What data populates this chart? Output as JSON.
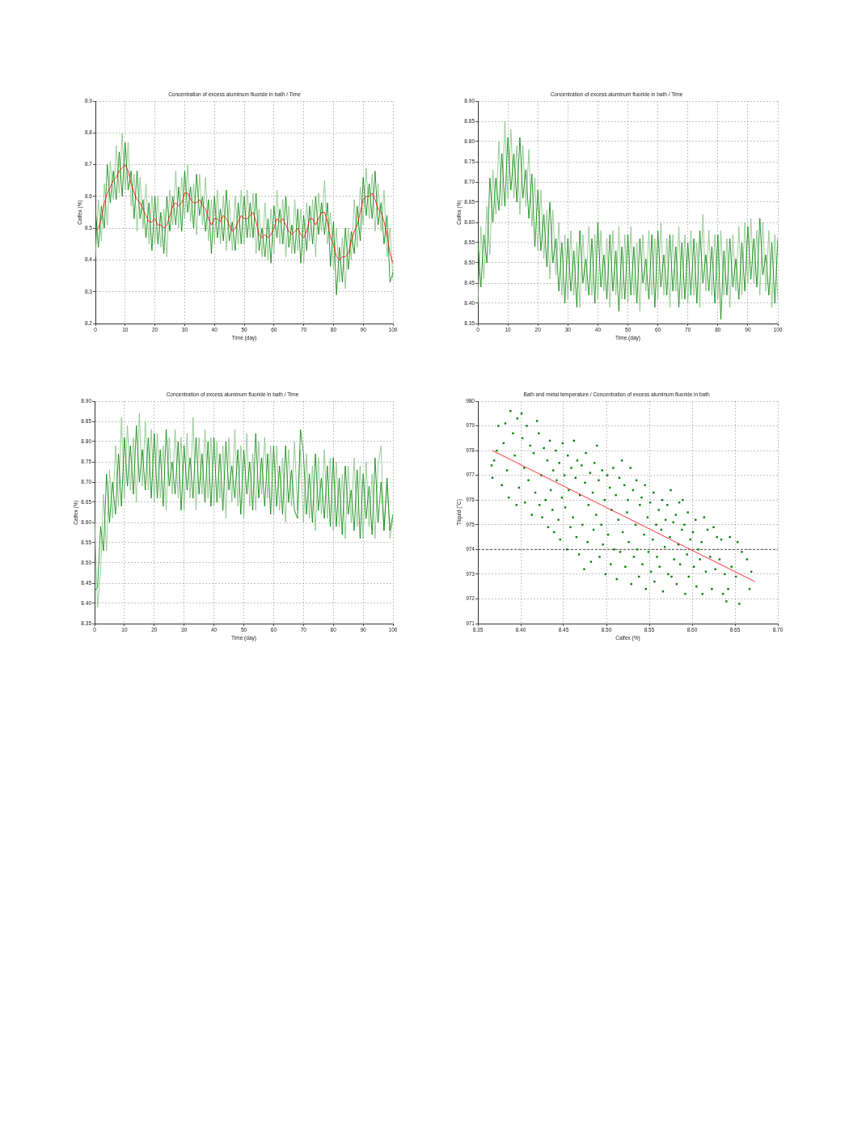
{
  "chart_data": [
    {
      "type": "line",
      "title": "Concentration of excess aluminum fluoride in bath / Time",
      "xlabel": "Time (day)",
      "ylabel": "Calfex (%)",
      "x": [
        0,
        1,
        2,
        3,
        4,
        5,
        6,
        7,
        8,
        9,
        10,
        11,
        12,
        13,
        14,
        15,
        16,
        17,
        18,
        19,
        20,
        21,
        22,
        23,
        24,
        25,
        26,
        27,
        28,
        29,
        30,
        31,
        32,
        33,
        34,
        35,
        36,
        37,
        38,
        39,
        40,
        41,
        42,
        43,
        44,
        45,
        46,
        47,
        48,
        49,
        50,
        51,
        52,
        53,
        54,
        55,
        56,
        57,
        58,
        59,
        60,
        61,
        62,
        63,
        64,
        65,
        66,
        67,
        68,
        69,
        70,
        71,
        72,
        73,
        74,
        75,
        76,
        77,
        78,
        79,
        80,
        81,
        82,
        83,
        84,
        85,
        86,
        87,
        88,
        89,
        90,
        91,
        92,
        93,
        94,
        95,
        96,
        97,
        98,
        99,
        100
      ],
      "xlim": [
        0,
        100
      ],
      "xticks": [
        0,
        10,
        20,
        30,
        40,
        50,
        60,
        70,
        80,
        90,
        100
      ],
      "ylim": [
        8.2,
        8.9
      ],
      "yticks": [
        8.2,
        8.3,
        8.4,
        8.5,
        8.6,
        8.7,
        8.8,
        8.9
      ],
      "grid": true,
      "series": [
        {
          "color": "#80c080",
          "values": [
            8.41,
            8.59,
            8.46,
            8.64,
            8.51,
            8.71,
            8.59,
            8.76,
            8.61,
            8.8,
            8.62,
            8.77,
            8.57,
            8.67,
            8.49,
            8.66,
            8.5,
            8.64,
            8.45,
            8.6,
            8.45,
            8.6,
            8.44,
            8.56,
            8.41,
            8.62,
            8.51,
            8.68,
            8.5,
            8.66,
            8.53,
            8.7,
            8.52,
            8.64,
            8.48,
            8.67,
            8.51,
            8.66,
            8.46,
            8.59,
            8.45,
            8.62,
            8.45,
            8.6,
            8.43,
            8.59,
            8.43,
            8.6,
            8.45,
            8.62,
            8.45,
            8.62,
            8.47,
            8.61,
            8.42,
            8.56,
            8.41,
            8.58,
            8.4,
            8.56,
            8.42,
            8.62,
            8.45,
            8.59,
            8.41,
            8.57,
            8.42,
            8.59,
            8.43,
            8.56,
            8.39,
            8.58,
            8.46,
            8.59,
            8.41,
            8.61,
            8.49,
            8.65,
            8.45,
            8.55,
            8.37,
            8.5,
            8.33,
            8.47,
            8.31,
            8.5,
            8.4,
            8.59,
            8.44,
            8.63,
            8.51,
            8.69,
            8.53,
            8.67,
            8.49,
            8.64,
            8.49,
            8.62,
            8.41,
            8.5,
            8.34
          ]
        },
        {
          "color": "#008000",
          "values": [
            8.56,
            8.44,
            8.57,
            8.5,
            8.7,
            8.58,
            8.68,
            8.59,
            8.74,
            8.6,
            8.77,
            8.62,
            8.68,
            8.53,
            8.68,
            8.53,
            8.59,
            8.47,
            8.58,
            8.43,
            8.6,
            8.45,
            8.55,
            8.42,
            8.6,
            8.49,
            8.6,
            8.51,
            8.63,
            8.49,
            8.68,
            8.55,
            8.63,
            8.5,
            8.67,
            8.54,
            8.6,
            8.49,
            8.59,
            8.42,
            8.6,
            8.47,
            8.56,
            8.46,
            8.62,
            8.46,
            8.52,
            8.43,
            8.58,
            8.45,
            8.6,
            8.47,
            8.58,
            8.47,
            8.61,
            8.43,
            8.5,
            8.41,
            8.53,
            8.39,
            8.57,
            8.47,
            8.56,
            8.45,
            8.6,
            8.44,
            8.51,
            8.42,
            8.56,
            8.39,
            8.54,
            8.43,
            8.57,
            8.45,
            8.6,
            8.48,
            8.58,
            8.48,
            8.58,
            8.38,
            8.52,
            8.29,
            8.44,
            8.33,
            8.5,
            8.37,
            8.49,
            8.42,
            8.57,
            8.46,
            8.66,
            8.54,
            8.64,
            8.53,
            8.68,
            8.51,
            8.58,
            8.45,
            8.54,
            8.33,
            8.36
          ]
        },
        {
          "color": "#ff0000",
          "values": [
            8.49,
            8.5,
            8.53,
            8.58,
            8.61,
            8.63,
            8.65,
            8.66,
            8.68,
            8.69,
            8.7,
            8.68,
            8.64,
            8.61,
            8.59,
            8.58,
            8.56,
            8.54,
            8.52,
            8.52,
            8.53,
            8.51,
            8.51,
            8.5,
            8.51,
            8.54,
            8.57,
            8.58,
            8.57,
            8.58,
            8.61,
            8.61,
            8.59,
            8.58,
            8.58,
            8.59,
            8.57,
            8.56,
            8.53,
            8.51,
            8.53,
            8.53,
            8.52,
            8.54,
            8.53,
            8.51,
            8.49,
            8.5,
            8.52,
            8.54,
            8.53,
            8.53,
            8.54,
            8.55,
            8.52,
            8.48,
            8.47,
            8.48,
            8.47,
            8.48,
            8.5,
            8.53,
            8.52,
            8.53,
            8.51,
            8.49,
            8.48,
            8.49,
            8.5,
            8.48,
            8.47,
            8.49,
            8.53,
            8.53,
            8.51,
            8.53,
            8.55,
            8.55,
            8.52,
            8.47,
            8.45,
            8.41,
            8.4,
            8.41,
            8.41,
            8.42,
            8.46,
            8.49,
            8.51,
            8.55,
            8.59,
            8.6,
            8.6,
            8.61,
            8.59,
            8.56,
            8.55,
            8.52,
            8.48,
            8.42,
            8.39
          ]
        }
      ]
    },
    {
      "type": "line",
      "title": "Concentration of excess aluminum fluoride in bath / Time",
      "xlabel": "Time (day)",
      "ylabel": "Calfex (%)",
      "x": [
        0,
        1,
        2,
        3,
        4,
        5,
        6,
        7,
        8,
        9,
        10,
        11,
        12,
        13,
        14,
        15,
        16,
        17,
        18,
        19,
        20,
        21,
        22,
        23,
        24,
        25,
        26,
        27,
        28,
        29,
        30,
        31,
        32,
        33,
        34,
        35,
        36,
        37,
        38,
        39,
        40,
        41,
        42,
        43,
        44,
        45,
        46,
        47,
        48,
        49,
        50,
        51,
        52,
        53,
        54,
        55,
        56,
        57,
        58,
        59,
        60,
        61,
        62,
        63,
        64,
        65,
        66,
        67,
        68,
        69,
        70,
        71,
        72,
        73,
        74,
        75,
        76,
        77,
        78,
        79,
        80,
        81,
        82,
        83,
        84,
        85,
        86,
        87,
        88,
        89,
        90,
        91,
        92,
        93,
        94,
        95,
        96,
        97,
        98,
        99,
        100
      ],
      "xlim": [
        0,
        100
      ],
      "xticks": [
        0,
        10,
        20,
        30,
        40,
        50,
        60,
        70,
        80,
        90,
        100
      ],
      "ylim": [
        8.35,
        8.9
      ],
      "yticks": [
        8.35,
        {
          "value": 8.4,
          "label": "8.40"
        },
        8.45,
        {
          "value": 8.5,
          "label": "8.50"
        },
        8.55,
        {
          "value": 8.6,
          "label": "8.60"
        },
        8.65,
        {
          "value": 8.7,
          "label": "8.70"
        },
        8.75,
        {
          "value": 8.8,
          "label": "8.80"
        },
        8.85,
        {
          "value": 8.9,
          "label": "8.90"
        }
      ],
      "grid": true,
      "series": [
        {
          "color": "#80c080",
          "values": [
            8.4,
            8.59,
            8.46,
            8.64,
            8.52,
            8.73,
            8.62,
            8.8,
            8.64,
            8.85,
            8.66,
            8.83,
            8.66,
            8.79,
            8.62,
            8.79,
            8.64,
            8.78,
            8.59,
            8.71,
            8.53,
            8.68,
            8.51,
            8.63,
            8.46,
            8.63,
            8.47,
            8.6,
            8.42,
            8.57,
            8.41,
            8.58,
            8.42,
            8.55,
            8.39,
            8.57,
            8.43,
            8.59,
            8.42,
            8.57,
            8.41,
            8.58,
            8.43,
            8.56,
            8.39,
            8.58,
            8.42,
            8.59,
            8.41,
            8.57,
            8.4,
            8.59,
            8.42,
            8.55,
            8.38,
            8.57,
            8.43,
            8.58,
            8.42,
            8.56,
            8.41,
            8.6,
            8.42,
            8.56,
            8.39,
            8.57,
            8.43,
            8.59,
            8.41,
            8.57,
            8.4,
            8.58,
            8.42,
            8.55,
            8.39,
            8.62,
            8.43,
            8.58,
            8.42,
            8.57,
            8.41,
            8.58,
            8.42,
            8.56,
            8.39,
            8.57,
            8.43,
            8.59,
            8.42,
            8.6,
            8.45,
            8.61,
            8.45,
            8.58,
            8.42,
            8.6,
            8.43,
            8.58,
            8.39,
            8.57,
            8.41
          ]
        },
        {
          "color": "#008000",
          "values": [
            8.55,
            8.44,
            8.57,
            8.5,
            8.71,
            8.6,
            8.71,
            8.63,
            8.77,
            8.64,
            8.81,
            8.68,
            8.77,
            8.65,
            8.81,
            8.66,
            8.73,
            8.61,
            8.72,
            8.54,
            8.68,
            8.53,
            8.62,
            8.49,
            8.65,
            8.5,
            8.56,
            8.43,
            8.55,
            8.4,
            8.56,
            8.43,
            8.53,
            8.39,
            8.58,
            8.45,
            8.51,
            8.42,
            8.56,
            8.4,
            8.6,
            8.44,
            8.52,
            8.41,
            8.57,
            8.43,
            8.53,
            8.38,
            8.54,
            8.41,
            8.57,
            8.42,
            8.54,
            8.4,
            8.56,
            8.45,
            8.51,
            8.41,
            8.57,
            8.39,
            8.58,
            8.44,
            8.52,
            8.42,
            8.57,
            8.43,
            8.54,
            8.39,
            8.55,
            8.41,
            8.55,
            8.42,
            8.56,
            8.4,
            8.58,
            8.45,
            8.52,
            8.43,
            8.54,
            8.4,
            8.57,
            8.36,
            8.53,
            8.42,
            8.56,
            8.44,
            8.51,
            8.41,
            8.55,
            8.43,
            8.59,
            8.46,
            8.56,
            8.44,
            8.61,
            8.47,
            8.52,
            8.42,
            8.55,
            8.4,
            8.56
          ]
        }
      ]
    },
    {
      "type": "line",
      "title": "Concentration of excess aluminum fluoride in bath / Time",
      "xlabel": "Time (day)",
      "ylabel": "Calfex (%)",
      "x": [
        0,
        1,
        2,
        3,
        4,
        5,
        6,
        7,
        8,
        9,
        10,
        11,
        12,
        13,
        14,
        15,
        16,
        17,
        18,
        19,
        20,
        21,
        22,
        23,
        24,
        25,
        26,
        27,
        28,
        29,
        30,
        31,
        32,
        33,
        34,
        35,
        36,
        37,
        38,
        39,
        40,
        41,
        42,
        43,
        44,
        45,
        46,
        47,
        48,
        49,
        50,
        51,
        52,
        53,
        54,
        55,
        56,
        57,
        58,
        59,
        60,
        61,
        62,
        63,
        64,
        65,
        66,
        67,
        68,
        69,
        70,
        71,
        72,
        73,
        74,
        75,
        76,
        77,
        78,
        79,
        80,
        81,
        82,
        83,
        84,
        85,
        86,
        87,
        88,
        89,
        90,
        91,
        92,
        93,
        94,
        95,
        96,
        97,
        98,
        99,
        100
      ],
      "xlim": [
        0,
        100
      ],
      "xticks": [
        0,
        10,
        20,
        30,
        40,
        50,
        60,
        70,
        80,
        90,
        100
      ],
      "ylim": [
        8.35,
        8.9
      ],
      "yticks": [
        8.35,
        {
          "value": 8.4,
          "label": "8.40"
        },
        8.45,
        {
          "value": 8.5,
          "label": "8.50"
        },
        8.55,
        {
          "value": 8.6,
          "label": "8.60"
        },
        8.65,
        {
          "value": 8.7,
          "label": "8.70"
        },
        8.75,
        {
          "value": 8.8,
          "label": "8.80"
        },
        8.85,
        {
          "value": 8.9,
          "label": "8.90"
        }
      ],
      "grid": true,
      "series": [
        {
          "color": "#80c080",
          "values": [
            8.6,
            8.39,
            8.48,
            8.67,
            8.53,
            8.73,
            8.61,
            8.79,
            8.64,
            8.86,
            8.66,
            8.84,
            8.68,
            8.81,
            8.65,
            8.87,
            8.69,
            8.85,
            8.68,
            8.83,
            8.65,
            8.82,
            8.66,
            8.79,
            8.63,
            8.81,
            8.67,
            8.83,
            8.66,
            8.81,
            8.63,
            8.82,
            8.66,
            8.86,
            8.63,
            8.81,
            8.67,
            8.83,
            8.66,
            8.81,
            8.64,
            8.8,
            8.66,
            8.79,
            8.61,
            8.81,
            8.65,
            8.83,
            8.64,
            8.79,
            8.61,
            8.82,
            8.64,
            8.77,
            8.63,
            8.8,
            8.67,
            8.81,
            8.66,
            8.79,
            8.62,
            8.79,
            8.63,
            8.76,
            8.6,
            8.78,
            8.64,
            8.8,
            8.63,
            8.78,
            8.6,
            8.77,
            8.61,
            8.74,
            8.58,
            8.76,
            8.62,
            8.78,
            8.61,
            8.76,
            8.58,
            8.75,
            8.59,
            8.72,
            8.56,
            8.74,
            8.6,
            8.76,
            8.59,
            8.74,
            8.56,
            8.75,
            8.59,
            8.72,
            8.56,
            8.74,
            8.79,
            8.58,
            8.7,
            8.56,
            8.61
          ]
        },
        {
          "color": "#008000",
          "values": [
            8.43,
            8.44,
            8.59,
            8.53,
            8.72,
            8.6,
            8.7,
            8.62,
            8.77,
            8.64,
            8.81,
            8.69,
            8.79,
            8.67,
            8.84,
            8.7,
            8.78,
            8.68,
            8.81,
            8.66,
            8.82,
            8.66,
            8.78,
            8.64,
            8.83,
            8.69,
            8.75,
            8.67,
            8.8,
            8.63,
            8.79,
            8.68,
            8.76,
            8.66,
            8.81,
            8.67,
            8.77,
            8.65,
            8.8,
            8.64,
            8.81,
            8.65,
            8.77,
            8.63,
            8.8,
            8.68,
            8.74,
            8.66,
            8.78,
            8.62,
            8.78,
            8.67,
            8.75,
            8.63,
            8.82,
            8.66,
            8.76,
            8.64,
            8.77,
            8.62,
            8.79,
            8.64,
            8.74,
            8.62,
            8.79,
            8.65,
            8.73,
            8.63,
            8.61,
            8.83,
            8.77,
            8.62,
            8.72,
            8.6,
            8.77,
            8.63,
            8.71,
            8.61,
            8.74,
            8.59,
            8.76,
            8.59,
            8.71,
            8.57,
            8.74,
            8.62,
            8.68,
            8.58,
            8.73,
            8.56,
            8.72,
            8.61,
            8.69,
            8.57,
            8.76,
            8.6,
            8.7,
            8.58,
            8.71,
            8.58,
            8.62
          ]
        }
      ]
    },
    {
      "type": "scatter",
      "title": "Bath and metal temperature / Concentration of excess aluminum fluoride in bath",
      "xlabel": "Calfex (%)",
      "ylabel": "Tliquid (°C)",
      "xlim": [
        8.35,
        8.7
      ],
      "xticks": [
        8.35,
        {
          "value": 8.4,
          "label": "8.40"
        },
        8.45,
        {
          "value": 8.5,
          "label": "8.50"
        },
        8.55,
        {
          "value": 8.6,
          "label": "8.60"
        },
        8.65,
        {
          "value": 8.7,
          "label": "8.70"
        }
      ],
      "ylim": [
        971,
        980
      ],
      "yticks": [
        971,
        972,
        973,
        974,
        975,
        976,
        977,
        978,
        979,
        980
      ],
      "grid": true,
      "marker": "square",
      "ref_lines": [
        {
          "axis": "y",
          "value": 974,
          "color": "#404040",
          "line_style": "dashed"
        }
      ],
      "series": [
        {
          "color": "#008000",
          "x": [
            8.366,
            8.367,
            8.369,
            8.372,
            8.374,
            8.378,
            8.38,
            8.382,
            8.384,
            8.386,
            8.388,
            8.391,
            8.393,
            8.395,
            8.396,
            8.398,
            8.401,
            8.402,
            8.404,
            8.405,
            8.407,
            8.409,
            8.411,
            8.413,
            8.415,
            8.417,
            8.419,
            8.421,
            8.422,
            8.424,
            8.425,
            8.427,
            8.429,
            8.431,
            8.432,
            8.434,
            8.435,
            8.437,
            8.438,
            8.439,
            8.441,
            8.442,
            8.444,
            8.445,
            8.446,
            8.448,
            8.449,
            8.451,
            8.452,
            8.454,
            8.455,
            8.456,
            8.458,
            8.459,
            8.461,
            8.462,
            8.464,
            8.465,
            8.466,
            8.468,
            8.469,
            8.471,
            8.472,
            8.474,
            8.475,
            8.476,
            8.478,
            8.479,
            8.481,
            8.482,
            8.484,
            8.485,
            8.486,
            8.488,
            8.489,
            8.491,
            8.492,
            8.494,
            8.495,
            8.496,
            8.498,
            8.499,
            8.501,
            8.502,
            8.504,
            8.505,
            8.506,
            8.508,
            8.509,
            8.511,
            8.512,
            8.514,
            8.515,
            8.516,
            8.518,
            8.519,
            8.521,
            8.522,
            8.524,
            8.525,
            8.526,
            8.528,
            8.529,
            8.531,
            8.532,
            8.534,
            8.535,
            8.536,
            8.538,
            8.539,
            8.541,
            8.542,
            8.544,
            8.545,
            8.546,
            8.548,
            8.549,
            8.551,
            8.552,
            8.554,
            8.555,
            8.556,
            8.558,
            8.559,
            8.561,
            8.562,
            8.564,
            8.565,
            8.566,
            8.568,
            8.569,
            8.571,
            8.572,
            8.574,
            8.575,
            8.576,
            8.578,
            8.579,
            8.581,
            8.582,
            8.584,
            8.585,
            8.586,
            8.588,
            8.589,
            8.591,
            8.592,
            8.594,
            8.595,
            8.596,
            8.598,
            8.601,
            8.602,
            8.604,
            8.605,
            8.607,
            8.609,
            8.611,
            8.612,
            8.614,
            8.616,
            8.618,
            8.621,
            8.623,
            8.625,
            8.627,
            8.629,
            8.632,
            8.634,
            8.636,
            8.638,
            8.64,
            8.642,
            8.644,
            8.646,
            8.651,
            8.653,
            8.655,
            8.658,
            8.664,
            8.667,
            8.669
          ],
          "values": [
            977.4,
            976.9,
            977.6,
            978.0,
            979.0,
            976.6,
            978.3,
            979.1,
            977.2,
            976.1,
            979.6,
            978.7,
            977.8,
            975.8,
            979.3,
            976.5,
            979.5,
            978.5,
            977.3,
            975.9,
            979.0,
            976.8,
            978.2,
            975.4,
            977.9,
            976.3,
            979.2,
            978.7,
            975.8,
            977.0,
            975.3,
            978.1,
            976.0,
            977.6,
            974.9,
            978.4,
            976.4,
            975.6,
            977.2,
            974.7,
            978.0,
            976.8,
            975.2,
            977.5,
            974.4,
            976.1,
            978.3,
            977.0,
            975.7,
            974.0,
            977.8,
            976.4,
            974.9,
            977.3,
            975.3,
            978.4,
            976.9,
            974.5,
            977.6,
            973.8,
            976.2,
            977.4,
            975.0,
            973.2,
            976.7,
            977.9,
            974.3,
            975.8,
            977.1,
            973.5,
            976.3,
            974.8,
            977.5,
            975.4,
            978.2,
            976.8,
            973.7,
            975.0,
            977.2,
            974.2,
            976.0,
            973.0,
            977.0,
            974.6,
            976.5,
            973.4,
            975.6,
            977.3,
            974.0,
            976.2,
            972.8,
            975.2,
            976.9,
            973.9,
            977.6,
            974.7,
            976.6,
            973.3,
            975.5,
            976.0,
            974.3,
            977.3,
            972.6,
            976.4,
            973.7,
            975.0,
            976.8,
            974.0,
            972.9,
            975.8,
            976.1,
            973.4,
            974.6,
            976.6,
            972.4,
            975.3,
            973.9,
            975.9,
            973.1,
            974.4,
            976.3,
            972.7,
            975.0,
            973.7,
            975.6,
            973.3,
            974.8,
            976.0,
            972.3,
            974.1,
            975.2,
            975.8,
            973.0,
            974.5,
            976.4,
            972.9,
            975.1,
            973.6,
            975.4,
            972.6,
            974.2,
            975.9,
            973.4,
            974.8,
            976.0,
            975.0,
            972.2,
            973.8,
            975.5,
            972.9,
            974.4,
            974.7,
            973.3,
            975.2,
            972.5,
            974.0,
            973.6,
            974.3,
            972.2,
            975.3,
            973.1,
            974.8,
            973.7,
            972.4,
            974.9,
            973.2,
            974.5,
            973.6,
            974.4,
            972.2,
            973.0,
            971.9,
            972.4,
            974.5,
            973.3,
            972.9,
            974.3,
            971.8,
            973.9,
            973.6,
            972.4,
            973.1
          ]
        },
        {
          "type": "line",
          "color": "#ff0000",
          "marker": "none",
          "x": [
            8.367,
            8.673
          ],
          "values": [
            978.0,
            972.7
          ]
        }
      ]
    }
  ]
}
